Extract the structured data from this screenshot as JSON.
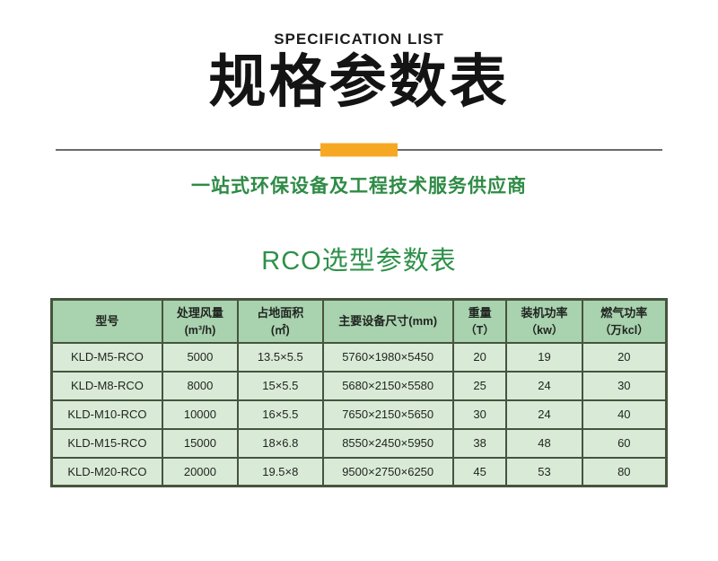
{
  "header": {
    "eyebrow": "SPECIFICATION LIST",
    "title": "规格参数表",
    "subtitle": "一站式环保设备及工程技术服务供应商"
  },
  "section": {
    "title": "RCO选型参数表"
  },
  "colors": {
    "accent_orange": "#f7a823",
    "green_text": "#2e8b45",
    "table_header_bg": "#a9d2af",
    "table_body_bg": "#d9ebd7",
    "table_border": "#46543e",
    "divider_gray": "#6a6a6a"
  },
  "table": {
    "columns": [
      {
        "label": "型号",
        "unit": ""
      },
      {
        "label": "处理风量",
        "unit": "(m³/h)"
      },
      {
        "label": "占地面积",
        "unit": "(㎡)"
      },
      {
        "label": "主要设备尺寸(mm)",
        "unit": ""
      },
      {
        "label": "重量",
        "unit": "（T）"
      },
      {
        "label": "装机功率",
        "unit": "（kw）"
      },
      {
        "label": "燃气功率",
        "unit": "（万kcl）"
      }
    ],
    "col_widths_percent": [
      18,
      12.3,
      13.8,
      21.2,
      8.7,
      12.3,
      13.7
    ],
    "rows": [
      [
        "KLD-M5-RCO",
        "5000",
        "13.5×5.5",
        "5760×1980×5450",
        "20",
        "19",
        "20"
      ],
      [
        "KLD-M8-RCO",
        "8000",
        "15×5.5",
        "5680×2150×5580",
        "25",
        "24",
        "30"
      ],
      [
        "KLD-M10-RCO",
        "10000",
        "16×5.5",
        "7650×2150×5650",
        "30",
        "24",
        "40"
      ],
      [
        "KLD-M15-RCO",
        "15000",
        "18×6.8",
        "8550×2450×5950",
        "38",
        "48",
        "60"
      ],
      [
        "KLD-M20-RCO",
        "20000",
        "19.5×8",
        "9500×2750×6250",
        "45",
        "53",
        "80"
      ]
    ]
  }
}
